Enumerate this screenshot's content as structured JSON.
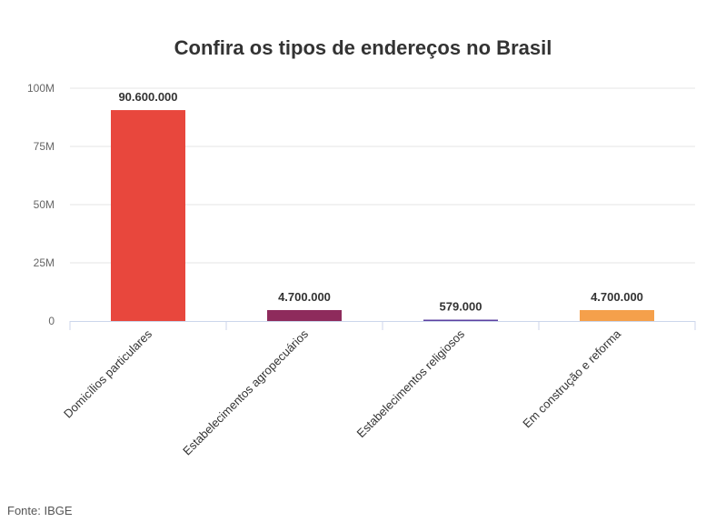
{
  "chart_data": {
    "type": "bar",
    "title": "Confira os tipos de endereços no Brasil",
    "categories": [
      "Domicílios particulares",
      "Estabelecimentos agropecuários",
      "Estabelecimentos religiosos",
      "Em construção e reforma"
    ],
    "values": [
      90600000,
      4700000,
      579000,
      4700000
    ],
    "value_labels": [
      "90.600.000",
      "4.700.000",
      "579.000",
      "4.700.000"
    ],
    "colors": [
      "#e8473d",
      "#8e2b5c",
      "#5b3fa0",
      "#f5a04b"
    ],
    "y_ticks": [
      {
        "value": 0,
        "label": "0"
      },
      {
        "value": 25000000,
        "label": "25M"
      },
      {
        "value": 50000000,
        "label": "50M"
      },
      {
        "value": 75000000,
        "label": "75M"
      },
      {
        "value": 100000000,
        "label": "100M"
      }
    ],
    "ylim": [
      0,
      100000000
    ],
    "xlabel": "",
    "ylabel": "",
    "grid": true,
    "legend": false
  },
  "source": "Fonte: IBGE"
}
